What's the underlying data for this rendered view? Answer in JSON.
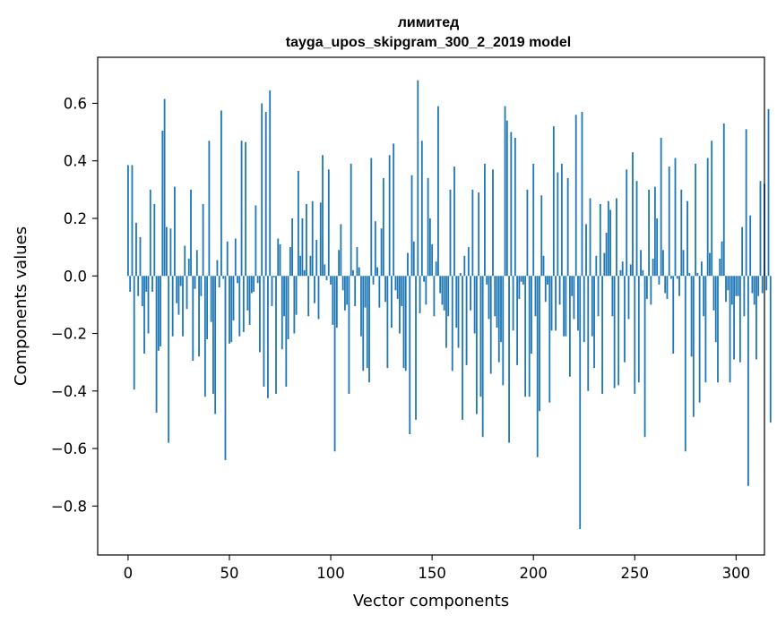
{
  "chart_data": {
    "type": "bar",
    "title_lines": [
      "лимитед",
      "tayga_upos_skipgram_300_2_2019 model"
    ],
    "xlabel": "Vector components",
    "ylabel": "Components values",
    "xlim": [
      -15,
      314
    ],
    "ylim": [
      -0.97,
      0.76
    ],
    "xticks": [
      0,
      50,
      100,
      150,
      200,
      250,
      300
    ],
    "yticks": [
      -0.8,
      -0.6,
      -0.4,
      -0.2,
      0.0,
      0.2,
      0.4,
      0.6
    ],
    "ytick_labels": [
      "−0.8",
      "−0.6",
      "−0.4",
      "−0.2",
      "0.0",
      "0.2",
      "0.4",
      "0.6"
    ],
    "bar_color": "#1f77b4",
    "values": [
      0.385,
      -0.055,
      0.385,
      -0.395,
      0.185,
      -0.07,
      0.135,
      -0.105,
      -0.27,
      -0.055,
      -0.2,
      0.3,
      -0.055,
      0.25,
      -0.475,
      -0.26,
      -0.245,
      0.505,
      0.615,
      0.17,
      -0.58,
      0.165,
      -0.21,
      0.31,
      -0.095,
      -0.135,
      -0.035,
      -0.21,
      0.105,
      -0.115,
      0.06,
      0.3,
      -0.295,
      -0.045,
      0.09,
      -0.28,
      -0.07,
      0.25,
      -0.42,
      -0.22,
      0.47,
      -0.16,
      -0.41,
      -0.48,
      0.055,
      -0.04,
      0.575,
      -0.01,
      -0.64,
      0.12,
      -0.235,
      -0.23,
      -0.155,
      0.13,
      -0.025,
      -0.21,
      0.47,
      -0.195,
      0.465,
      -0.12,
      -0.17,
      -0.06,
      -0.055,
      0.245,
      -0.025,
      -0.265,
      0.6,
      -0.385,
      0.57,
      -0.425,
      0.645,
      -0.105,
      -0.005,
      -0.41,
      0.13,
      0.11,
      -0.255,
      -0.14,
      -0.385,
      -0.22,
      0.1,
      0.2,
      -0.2,
      -0.135,
      0.365,
      0.07,
      0.2,
      0.02,
      0.25,
      -0.14,
      0.07,
      0.26,
      -0.095,
      0.125,
      -0.15,
      0.255,
      0.42,
      0.04,
      -0.015,
      0.37,
      -0.03,
      -0.17,
      -0.61,
      -0.18,
      0.09,
      0.18,
      -0.05,
      -0.12,
      -0.1,
      -0.41,
      0.39,
      0.02,
      -0.105,
      0.1,
      0.03,
      -0.21,
      -0.33,
      -0.11,
      -0.32,
      -0.37,
      0.41,
      -0.03,
      0.19,
      0.03,
      -0.11,
      0.165,
      0.34,
      -0.09,
      -0.32,
      0.42,
      -0.18,
      0.46,
      -0.05,
      -0.08,
      -0.2,
      -0.105,
      -0.32,
      -0.33,
      0.08,
      -0.55,
      0.35,
      0.12,
      -0.5,
      0.68,
      -0.13,
      0.47,
      -0.02,
      -0.1,
      0.34,
      0.2,
      0.11,
      -0.14,
      0.05,
      0.59,
      -0.06,
      -0.1,
      -0.12,
      -0.25,
      -0.14,
      0.3,
      -0.33,
      0.38,
      -0.18,
      -0.25,
      0.01,
      -0.5,
      0.07,
      -0.31,
      0.1,
      -0.12,
      0.3,
      -0.2,
      -0.48,
      0.29,
      -0.42,
      -0.56,
      0.39,
      -0.03,
      -0.15,
      -0.34,
      0.37,
      -0.14,
      -0.18,
      -0.3,
      -0.23,
      -0.38,
      0.59,
      0.54,
      -0.58,
      0.5,
      -0.19,
      0.48,
      -0.31,
      -0.08,
      -0.02,
      -0.03,
      -0.42,
      0.3,
      -0.42,
      -0.27,
      0.39,
      -0.14,
      -0.63,
      -0.47,
      0.28,
      0.07,
      -0.09,
      -0.03,
      -0.44,
      -0.19,
      0.52,
      -0.19,
      0.36,
      -0.1,
      0.39,
      -0.21,
      -0.21,
      0.34,
      -0.35,
      -0.07,
      -0.15,
      0.56,
      -0.19,
      -0.88,
      0.57,
      -0.23,
      0.18,
      -0.4,
      0.27,
      -0.21,
      -0.32,
      0.07,
      -0.14,
      0.25,
      -0.41,
      0.08,
      0.15,
      0.26,
      0.23,
      -0.14,
      -0.39,
      0.27,
      -0.38,
      0.02,
      0.05,
      -0.3,
      0.37,
      -0.15,
      0.04,
      0.43,
      -0.41,
      0.33,
      -0.37,
      0.09,
      0.02,
      -0.56,
      -0.08,
      0.3,
      -0.1,
      0.06,
      0.31,
      0.2,
      -0.03,
      0.48,
      0.09,
      -0.06,
      -0.08,
      0.38,
      -0.01,
      -0.27,
      0.41,
      -0.01,
      -0.07,
      0.3,
      0.09,
      -0.61,
      0.26,
      0.01,
      -0.28,
      -0.49,
      0.39,
      0.01,
      -0.44,
      0.05,
      -0.14,
      -0.37,
      0.41,
      0.08,
      0.47,
      -0.12,
      -0.23,
      -0.37,
      0.06,
      0.12,
      0.53,
      -0.09,
      -0.05,
      -0.37,
      -0.1,
      -0.29,
      -0.07,
      -0.07,
      -0.3,
      0.17,
      -0.14,
      0.51,
      -0.73,
      0.21,
      -0.06,
      -0.1,
      -0.29,
      -0.07,
      0.33,
      -0.06,
      0.32,
      -0.05,
      0.58,
      -0.51
    ]
  }
}
